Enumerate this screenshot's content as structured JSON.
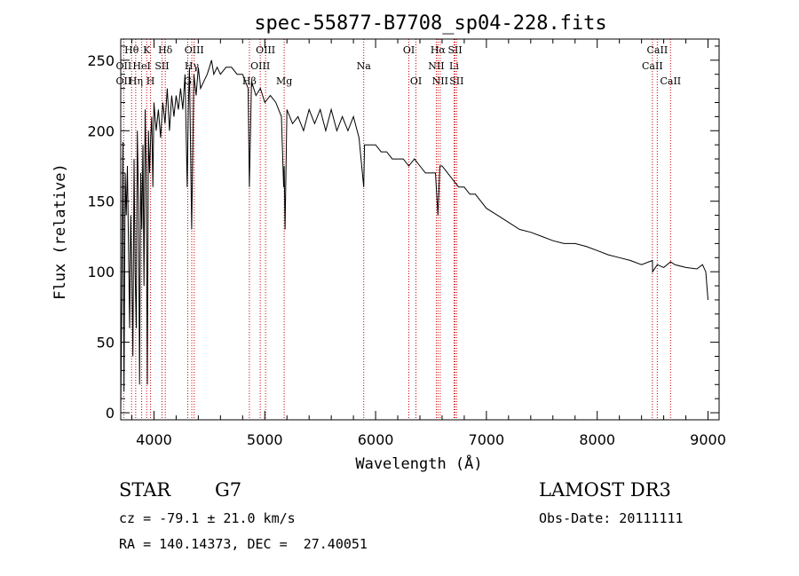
{
  "chart_data": {
    "type": "line",
    "title": "spec-55877-B7708_sp04-228.fits",
    "xlabel": "Wavelength (Å)",
    "ylabel": "Flux (relative)",
    "xlim": [
      3700,
      9100
    ],
    "ylim": [
      -5,
      265
    ],
    "xticks": [
      4000,
      5000,
      6000,
      7000,
      8000,
      9000
    ],
    "yticks": [
      0,
      50,
      100,
      150,
      200,
      250
    ],
    "grid": false,
    "series": [
      {
        "name": "flux",
        "x": [
          3700,
          3710,
          3720,
          3730,
          3740,
          3750,
          3760,
          3770,
          3780,
          3790,
          3800,
          3810,
          3820,
          3830,
          3840,
          3850,
          3860,
          3870,
          3880,
          3890,
          3900,
          3910,
          3920,
          3930,
          3940,
          3950,
          3960,
          3970,
          3980,
          3990,
          4000,
          4020,
          4040,
          4060,
          4080,
          4100,
          4120,
          4140,
          4160,
          4180,
          4200,
          4220,
          4240,
          4260,
          4280,
          4300,
          4310,
          4320,
          4340,
          4360,
          4380,
          4400,
          4420,
          4450,
          4480,
          4500,
          4520,
          4540,
          4570,
          4600,
          4650,
          4700,
          4750,
          4800,
          4850,
          4861,
          4880,
          4920,
          4960,
          5000,
          5050,
          5100,
          5150,
          5170,
          5175,
          5183,
          5200,
          5250,
          5300,
          5350,
          5400,
          5450,
          5500,
          5550,
          5600,
          5650,
          5700,
          5750,
          5800,
          5850,
          5893,
          5900,
          5950,
          6000,
          6050,
          6100,
          6150,
          6200,
          6250,
          6300,
          6350,
          6400,
          6450,
          6500,
          6540,
          6563,
          6580,
          6600,
          6650,
          6700,
          6750,
          6800,
          6850,
          6900,
          6950,
          7000,
          7100,
          7200,
          7300,
          7400,
          7500,
          7600,
          7700,
          7800,
          7900,
          8000,
          8100,
          8200,
          8300,
          8400,
          8498,
          8500,
          8542,
          8600,
          8662,
          8700,
          8800,
          8900,
          8950,
          8980,
          9000
        ],
        "y": [
          0,
          80,
          192,
          15,
          170,
          140,
          175,
          120,
          60,
          140,
          100,
          40,
          180,
          100,
          60,
          200,
          150,
          20,
          170,
          130,
          190,
          90,
          215,
          170,
          20,
          200,
          170,
          195,
          210,
          160,
          220,
          200,
          215,
          195,
          220,
          205,
          230,
          200,
          225,
          210,
          225,
          215,
          230,
          215,
          240,
          160,
          215,
          245,
          130,
          240,
          225,
          245,
          230,
          235,
          240,
          245,
          250,
          240,
          245,
          240,
          245,
          245,
          240,
          240,
          230,
          160,
          235,
          225,
          230,
          220,
          225,
          220,
          210,
          160,
          175,
          130,
          215,
          205,
          210,
          200,
          215,
          205,
          215,
          200,
          215,
          200,
          210,
          200,
          210,
          195,
          160,
          190,
          190,
          190,
          185,
          185,
          180,
          180,
          180,
          175,
          180,
          175,
          170,
          170,
          170,
          140,
          175,
          175,
          170,
          165,
          160,
          160,
          155,
          155,
          150,
          145,
          140,
          135,
          130,
          128,
          125,
          122,
          120,
          120,
          118,
          115,
          112,
          110,
          108,
          105,
          108,
          100,
          105,
          103,
          107,
          105,
          103,
          102,
          105,
          100,
          80
        ]
      }
    ],
    "annotations": [
      {
        "label": "Hθ",
        "x": 3798,
        "row": 1
      },
      {
        "label": "OII",
        "x": 3727,
        "row": 2
      },
      {
        "label": "OII",
        "x": 3727,
        "row": 3
      },
      {
        "label": "Hη",
        "x": 3835,
        "row": 3
      },
      {
        "label": "K",
        "x": 3934,
        "row": 1
      },
      {
        "label": "H",
        "x": 3969,
        "row": 3
      },
      {
        "label": "HeI",
        "x": 3889,
        "row": 2
      },
      {
        "label": "SII",
        "x": 4072,
        "row": 2
      },
      {
        "label": "Hδ",
        "x": 4102,
        "row": 1
      },
      {
        "label": "OIII",
        "x": 4363,
        "row": 1
      },
      {
        "label": "Hγ",
        "x": 4341,
        "row": 2
      },
      {
        "label": "G",
        "x": 4305,
        "row": 3
      },
      {
        "label": "OIII",
        "x": 5007,
        "row": 1
      },
      {
        "label": "OIII",
        "x": 4959,
        "row": 2
      },
      {
        "label": "Hβ",
        "x": 4861,
        "row": 3
      },
      {
        "label": "Mg",
        "x": 5175,
        "row": 3
      },
      {
        "label": "Na",
        "x": 5893,
        "row": 2
      },
      {
        "label": "OI",
        "x": 6300,
        "row": 1
      },
      {
        "label": "OI",
        "x": 6364,
        "row": 3
      },
      {
        "label": "Hα",
        "x": 6563,
        "row": 1
      },
      {
        "label": "SII",
        "x": 6717,
        "row": 1
      },
      {
        "label": "NII",
        "x": 6548,
        "row": 2
      },
      {
        "label": "Li",
        "x": 6708,
        "row": 2
      },
      {
        "label": "NII",
        "x": 6583,
        "row": 3
      },
      {
        "label": "SII",
        "x": 6731,
        "row": 3
      },
      {
        "label": "CaII",
        "x": 8542,
        "row": 1
      },
      {
        "label": "CaII",
        "x": 8498,
        "row": 2
      },
      {
        "label": "CaII",
        "x": 8662,
        "row": 3
      }
    ],
    "line_positions": [
      3727,
      3798,
      3835,
      3889,
      3934,
      3969,
      4072,
      4102,
      4305,
      4341,
      4363,
      4861,
      4959,
      5007,
      5175,
      5893,
      6300,
      6364,
      6548,
      6563,
      6583,
      6708,
      6717,
      6731,
      8498,
      8542,
      8662
    ]
  },
  "info": {
    "object_class": "STAR",
    "subclass": "G7",
    "survey": "LAMOST DR3",
    "redshift": "cz = -79.1 ± 21.0 km/s",
    "obs_date": "Obs-Date: 20111111",
    "coords": "RA = 140.14373, DEC =  27.40051"
  },
  "colors": {
    "axis": "#000000",
    "spectrum": "#000000",
    "line_marker": "#cc0000"
  }
}
